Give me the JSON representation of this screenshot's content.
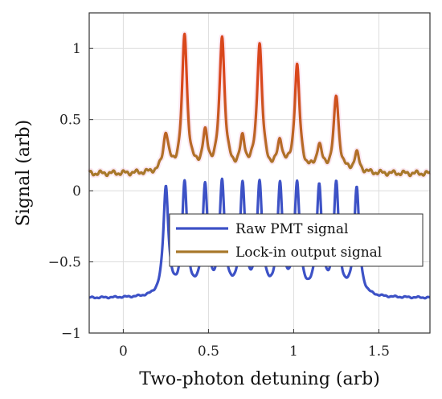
{
  "chart_data": {
    "type": "line",
    "xlabel": "Two-photon detuning (arb)",
    "ylabel": "Signal (arb)",
    "xlim": [
      -0.2,
      1.8
    ],
    "ylim": [
      -1,
      1.25
    ],
    "xticks": [
      0,
      0.5,
      1,
      1.5
    ],
    "xtick_labels": [
      "0",
      "0.5",
      "1",
      "1.5"
    ],
    "yticks": [
      -1,
      -0.5,
      0,
      0.5,
      1
    ],
    "ytick_labels": [
      "−1",
      "−0.5",
      "0",
      "0.5",
      "1"
    ],
    "grid": true,
    "legend_position": "lower-right",
    "peak_positions": [
      0.25,
      0.36,
      0.48,
      0.58,
      0.7,
      0.8,
      0.92,
      1.02,
      1.15,
      1.25,
      1.37
    ],
    "series": [
      {
        "name": "Raw PMT signal",
        "color": "#3d52c6",
        "baseline": -0.755,
        "peak_heights": [
          0.005,
          0.02,
          0.005,
          0.025,
          0.005,
          0.022,
          0.005,
          0.02,
          0.005,
          0.015,
          0.004
        ]
      },
      {
        "name": "Lock-in output signal",
        "color": "#a8782a",
        "peak_color": "#d9471c",
        "baseline": 0.12,
        "peak_heights": [
          0.39,
          1.08,
          0.37,
          1.07,
          0.33,
          1.02,
          0.32,
          0.86,
          0.3,
          0.65,
          0.25
        ]
      }
    ]
  }
}
